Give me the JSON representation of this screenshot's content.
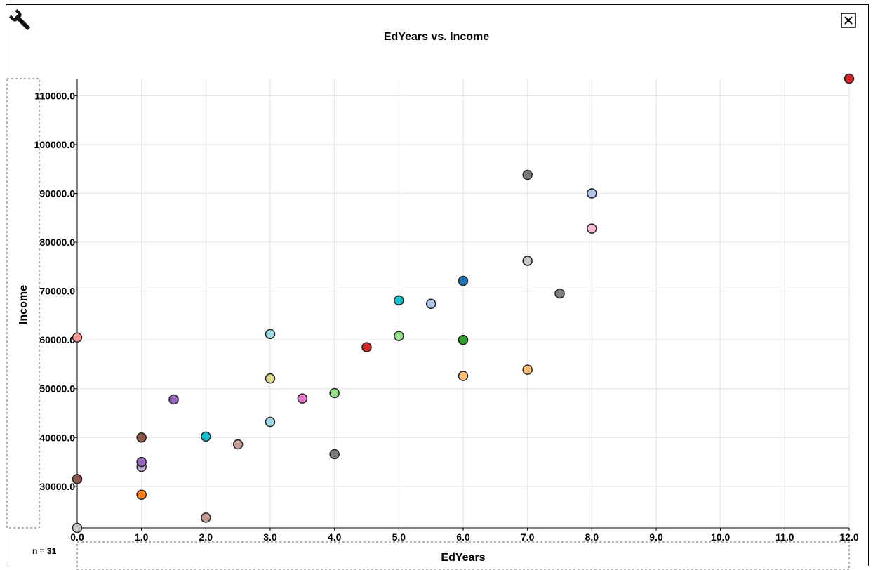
{
  "toolbar": {
    "wrench_icon": "wrench-icon",
    "close_icon": "close-icon"
  },
  "footer": {
    "n_label": "n = 31"
  },
  "colors": {
    "grid": "#e3e3e3",
    "axis": "#000000",
    "point_stroke": "#222222"
  },
  "chart_data": {
    "type": "scatter",
    "title": "EdYears vs. Income",
    "xlabel": "EdYears",
    "ylabel": "Income",
    "xlim": [
      0,
      12
    ],
    "ylim": [
      21500,
      113500
    ],
    "grid": true,
    "xticks": [
      0,
      1,
      2,
      3,
      4,
      5,
      6,
      7,
      8,
      9,
      10,
      11,
      12
    ],
    "xtick_labels": [
      "0.0",
      "1.0",
      "2.0",
      "3.0",
      "4.0",
      "5.0",
      "6.0",
      "7.0",
      "8.0",
      "9.0",
      "10.0",
      "11.0",
      "12.0"
    ],
    "yticks": [
      30000,
      40000,
      50000,
      60000,
      70000,
      80000,
      90000,
      100000,
      110000
    ],
    "ytick_labels": [
      "30000.0",
      "40000.0",
      "50000.0",
      "60000.0",
      "70000.0",
      "80000.0",
      "90000.0",
      "100000.0",
      "110000.0"
    ],
    "points": [
      {
        "x": 0,
        "y": 21500,
        "color": "#c8c8c8"
      },
      {
        "x": 0,
        "y": 31500,
        "color": "#8c564b"
      },
      {
        "x": 0,
        "y": 60500,
        "color": "#ff9896"
      },
      {
        "x": 1,
        "y": 28300,
        "color": "#ff7f0e"
      },
      {
        "x": 1,
        "y": 34000,
        "color": "#c5b0d5"
      },
      {
        "x": 1,
        "y": 35000,
        "color": "#9467bd"
      },
      {
        "x": 1,
        "y": 40000,
        "color": "#8c564b"
      },
      {
        "x": 1.5,
        "y": 47800,
        "color": "#9467bd"
      },
      {
        "x": 2,
        "y": 23600,
        "color": "#c49c94"
      },
      {
        "x": 2,
        "y": 40200,
        "color": "#17becf"
      },
      {
        "x": 2.5,
        "y": 38600,
        "color": "#c49c94"
      },
      {
        "x": 3,
        "y": 43200,
        "color": "#9edae5"
      },
      {
        "x": 3,
        "y": 52100,
        "color": "#dbdb8d"
      },
      {
        "x": 3,
        "y": 61200,
        "color": "#9edae5"
      },
      {
        "x": 3.5,
        "y": 48000,
        "color": "#e377c2"
      },
      {
        "x": 4,
        "y": 36600,
        "color": "#7f7f7f"
      },
      {
        "x": 4,
        "y": 49100,
        "color": "#98df8a"
      },
      {
        "x": 4.5,
        "y": 58500,
        "color": "#d62728"
      },
      {
        "x": 5,
        "y": 60800,
        "color": "#98df8a"
      },
      {
        "x": 5,
        "y": 68100,
        "color": "#17becf"
      },
      {
        "x": 5.5,
        "y": 67400,
        "color": "#aec7e8"
      },
      {
        "x": 6,
        "y": 52600,
        "color": "#ffbb78"
      },
      {
        "x": 6,
        "y": 60000,
        "color": "#2ca02c"
      },
      {
        "x": 6,
        "y": 72100,
        "color": "#1f77b4"
      },
      {
        "x": 7,
        "y": 53900,
        "color": "#ffbb78"
      },
      {
        "x": 7,
        "y": 76200,
        "color": "#c7c7c7"
      },
      {
        "x": 7,
        "y": 93800,
        "color": "#7f7f7f"
      },
      {
        "x": 7.5,
        "y": 69500,
        "color": "#7f7f7f"
      },
      {
        "x": 8,
        "y": 82800,
        "color": "#f7b6d2"
      },
      {
        "x": 8,
        "y": 90000,
        "color": "#aec7e8"
      },
      {
        "x": 12,
        "y": 113500,
        "color": "#d62728"
      }
    ]
  }
}
